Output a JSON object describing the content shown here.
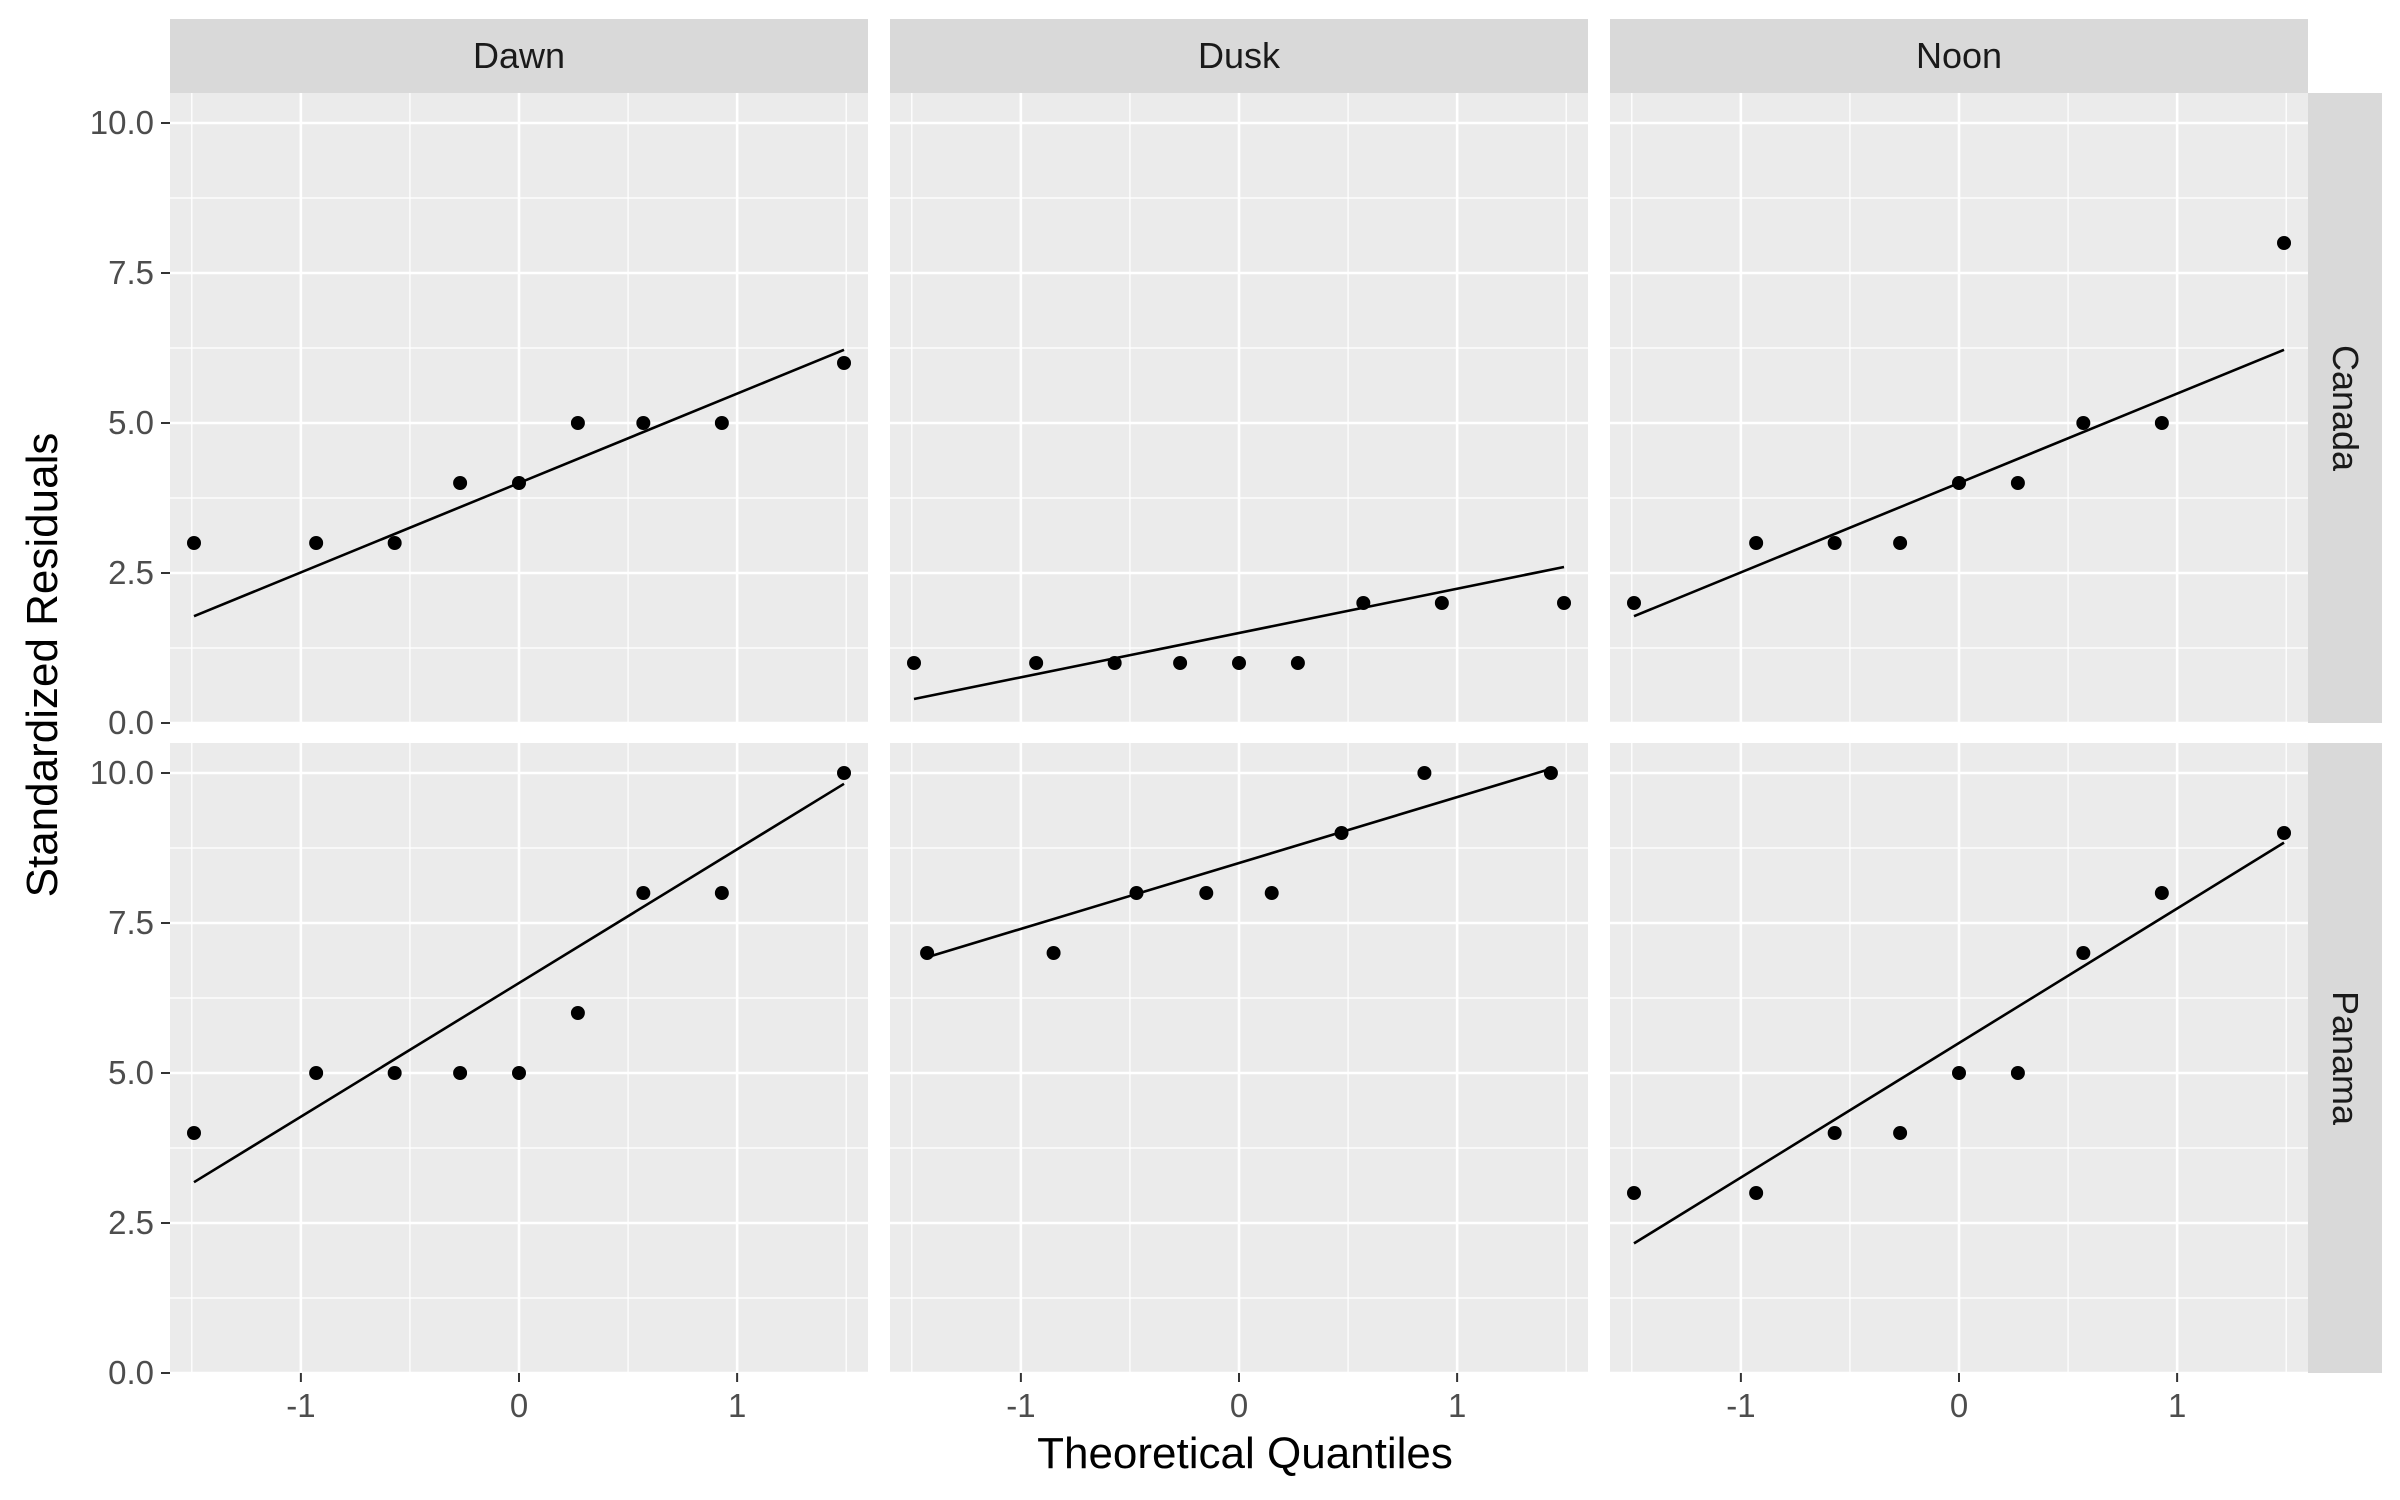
{
  "chart_data": {
    "type": "scatter",
    "layout": "facet-grid",
    "xlabel": "Theoretical Quantiles",
    "ylabel": "Standardized Residuals",
    "col_facets": [
      "Dawn",
      "Dusk",
      "Noon"
    ],
    "row_facets": [
      "Canada",
      "Panama"
    ],
    "xlim": [
      -1.6,
      1.6
    ],
    "ylim": [
      0,
      10.5
    ],
    "x_ticks": [
      -1,
      0,
      1
    ],
    "x_tick_labels": [
      "-1",
      "0",
      "1"
    ],
    "y_ticks": [
      0,
      2.5,
      5,
      7.5,
      10
    ],
    "y_tick_labels": [
      "0.0",
      "2.5",
      "5.0",
      "7.5",
      "10.0"
    ],
    "grid": true,
    "point_color": "#000000",
    "line_color": "#000000",
    "panel_background": "#ebebeb",
    "strip_background": "#d9d9d9",
    "panels": [
      {
        "col": "Dawn",
        "row": "Canada",
        "x": [
          -1.49,
          -0.93,
          -0.57,
          -0.27,
          0,
          0.27,
          0.57,
          0.93,
          1.49
        ],
        "y": [
          3,
          3,
          3,
          4,
          4,
          5,
          5,
          5,
          6
        ],
        "qq_line": {
          "x": [
            -1.49,
            1.49
          ],
          "y": [
            1.78,
            6.22
          ]
        }
      },
      {
        "col": "Dusk",
        "row": "Canada",
        "x": [
          -1.49,
          -0.93,
          -0.57,
          -0.27,
          0,
          0.27,
          0.57,
          0.93,
          1.49
        ],
        "y": [
          1,
          1,
          1,
          1,
          1,
          1,
          2,
          2,
          2
        ],
        "qq_line": {
          "x": [
            -1.49,
            1.49
          ],
          "y": [
            0.4,
            2.6
          ]
        }
      },
      {
        "col": "Noon",
        "row": "Canada",
        "x": [
          -1.49,
          -0.93,
          -0.57,
          -0.27,
          0,
          0.27,
          0.57,
          0.93,
          1.49
        ],
        "y": [
          2,
          3,
          3,
          3,
          4,
          4,
          5,
          5,
          8
        ],
        "qq_line": {
          "x": [
            -1.49,
            1.49
          ],
          "y": [
            1.78,
            6.22
          ]
        }
      },
      {
        "col": "Dawn",
        "row": "Panama",
        "x": [
          -1.49,
          -0.93,
          -0.57,
          -0.27,
          0,
          0.27,
          0.57,
          0.93,
          1.49
        ],
        "y": [
          4,
          5,
          5,
          5,
          5,
          6,
          8,
          8,
          10
        ],
        "qq_line": {
          "x": [
            -1.49,
            1.49
          ],
          "y": [
            3.18,
            9.82
          ]
        }
      },
      {
        "col": "Dusk",
        "row": "Panama",
        "x": [
          -1.43,
          -0.85,
          -0.47,
          -0.15,
          0.15,
          0.47,
          0.85,
          1.43
        ],
        "y": [
          7,
          7,
          8,
          8,
          8,
          9,
          10,
          10
        ],
        "qq_line": {
          "x": [
            -1.43,
            1.43
          ],
          "y": [
            6.93,
            10.07
          ]
        }
      },
      {
        "col": "Noon",
        "row": "Panama",
        "x": [
          -1.49,
          -0.93,
          -0.57,
          -0.27,
          0,
          0.27,
          0.57,
          0.93,
          1.49
        ],
        "y": [
          3,
          3,
          4,
          4,
          5,
          5,
          7,
          8,
          9
        ],
        "qq_line": {
          "x": [
            -1.49,
            1.49
          ],
          "y": [
            2.16,
            8.84
          ]
        }
      }
    ]
  }
}
